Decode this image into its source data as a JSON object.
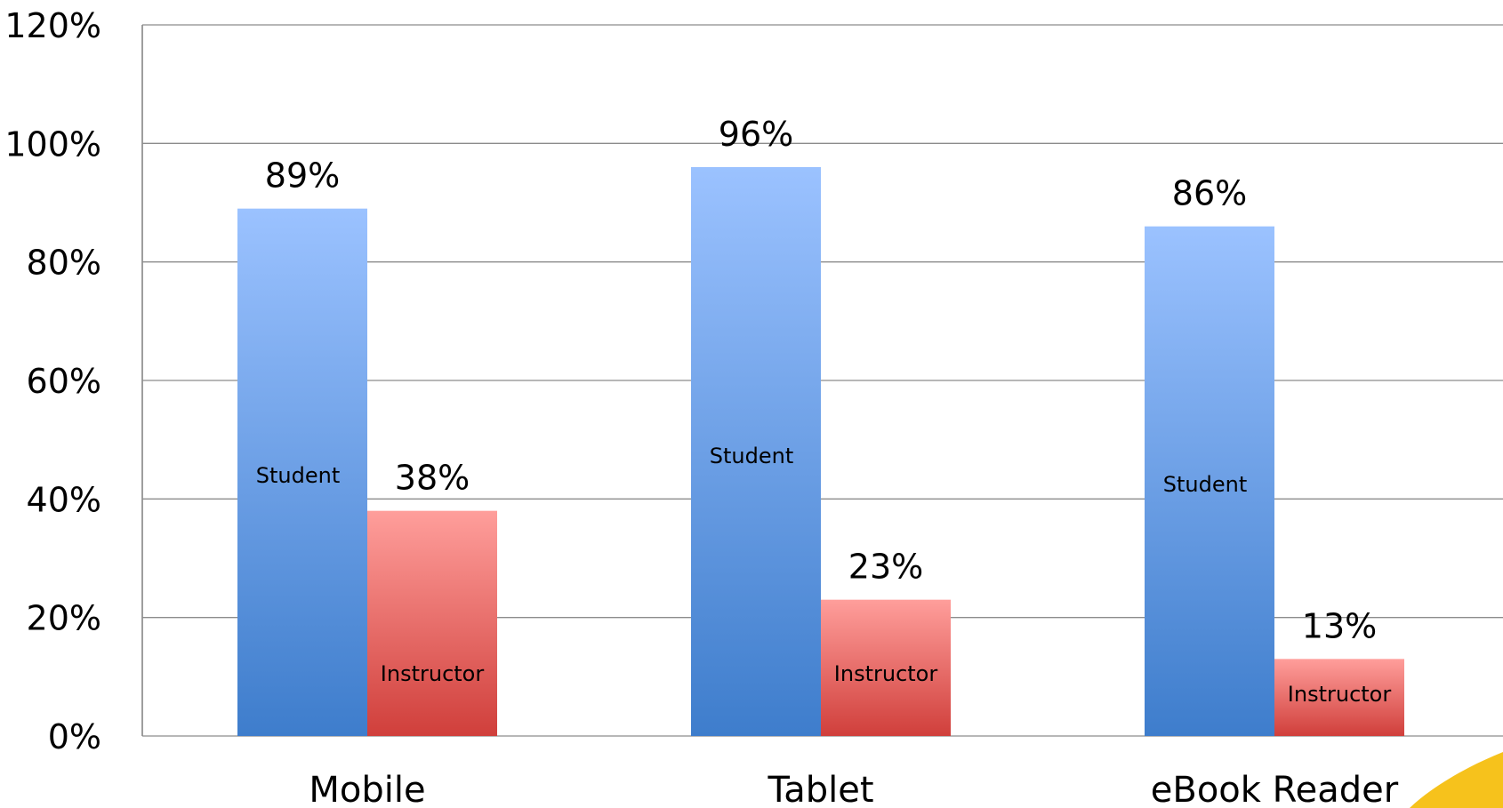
{
  "chart_data": {
    "type": "bar",
    "categories": [
      "Mobile",
      "Tablet",
      "eBook Reader"
    ],
    "series": [
      {
        "name": "Student",
        "values": [
          89,
          96,
          86
        ],
        "labels": [
          "89%",
          "96%",
          "86%"
        ],
        "inbar_labels": [
          "Student",
          "Student",
          "Student"
        ],
        "color_top": "#9bc2ff",
        "color_bottom": "#3e7dcc"
      },
      {
        "name": "Instructor",
        "values": [
          38,
          23,
          13
        ],
        "labels": [
          "38%",
          "23%",
          "13%"
        ],
        "inbar_labels": [
          "Instructor",
          "Instructor",
          "Instructor"
        ],
        "color_top": "#ff9e9b",
        "color_bottom": "#d03f3b"
      }
    ],
    "ylim": [
      0,
      120
    ],
    "yticks": [
      0,
      20,
      40,
      60,
      80,
      100,
      120
    ],
    "ytick_labels": [
      "0%",
      "20%",
      "40%",
      "60%",
      "80%",
      "100%",
      "120%"
    ],
    "grid": true,
    "title": "",
    "xlabel": "",
    "ylabel": "",
    "decoration_color": "#f6c21c"
  }
}
